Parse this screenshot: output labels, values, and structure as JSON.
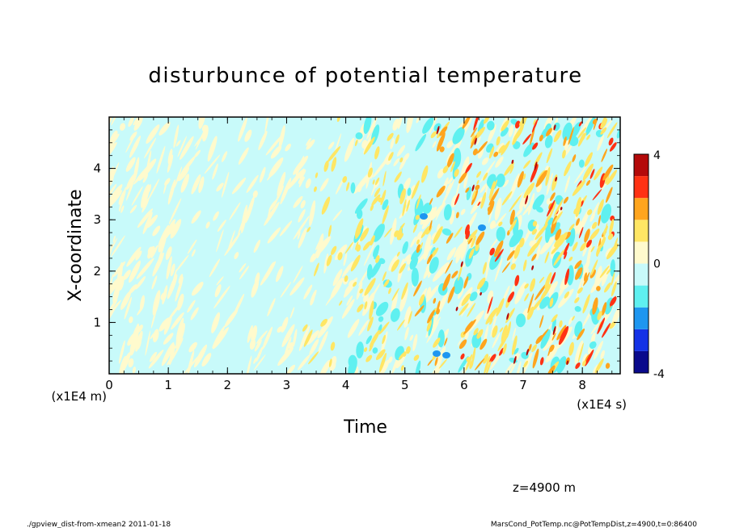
{
  "chart_data": {
    "type": "heatmap",
    "title": "disturbunce of potential temperature",
    "xlabel": "Time",
    "ylabel": "X-coordinate",
    "x_unit_label": "(x1E4 s)",
    "y_unit_label": "(x1E4 m)",
    "xlim": [
      0,
      8.64
    ],
    "ylim": [
      0,
      5
    ],
    "x_ticks": [
      0,
      1,
      2,
      3,
      4,
      5,
      6,
      7,
      8
    ],
    "y_ticks": [
      1,
      2,
      3,
      4
    ],
    "colorbar": {
      "min": -4,
      "max": 4,
      "tick_labels": [
        "4",
        "0",
        "-4"
      ],
      "levels": [
        -4,
        -3,
        -2,
        -1,
        0,
        1,
        2,
        3,
        4
      ],
      "colors": [
        "#0a0a8c",
        "#1432e6",
        "#1e96f0",
        "#5ff0f0",
        "#c8fafa",
        "#fffacd",
        "#ffe664",
        "#ffa51e",
        "#ff3214",
        "#b40a0a"
      ]
    },
    "grid": false,
    "note": "Contour field of potential temperature disturbance; mostly slightly negative (light cyan) with streaks of positive values (pale yellow to red) increasing in intensity toward later times."
  },
  "annotation": "z=4900  m",
  "footer_left": "./gpview_dist-from-xmean2  2011-01-18",
  "footer_right": "MarsCond_PotTemp.nc@PotTempDist,z=4900,t=0:86400"
}
